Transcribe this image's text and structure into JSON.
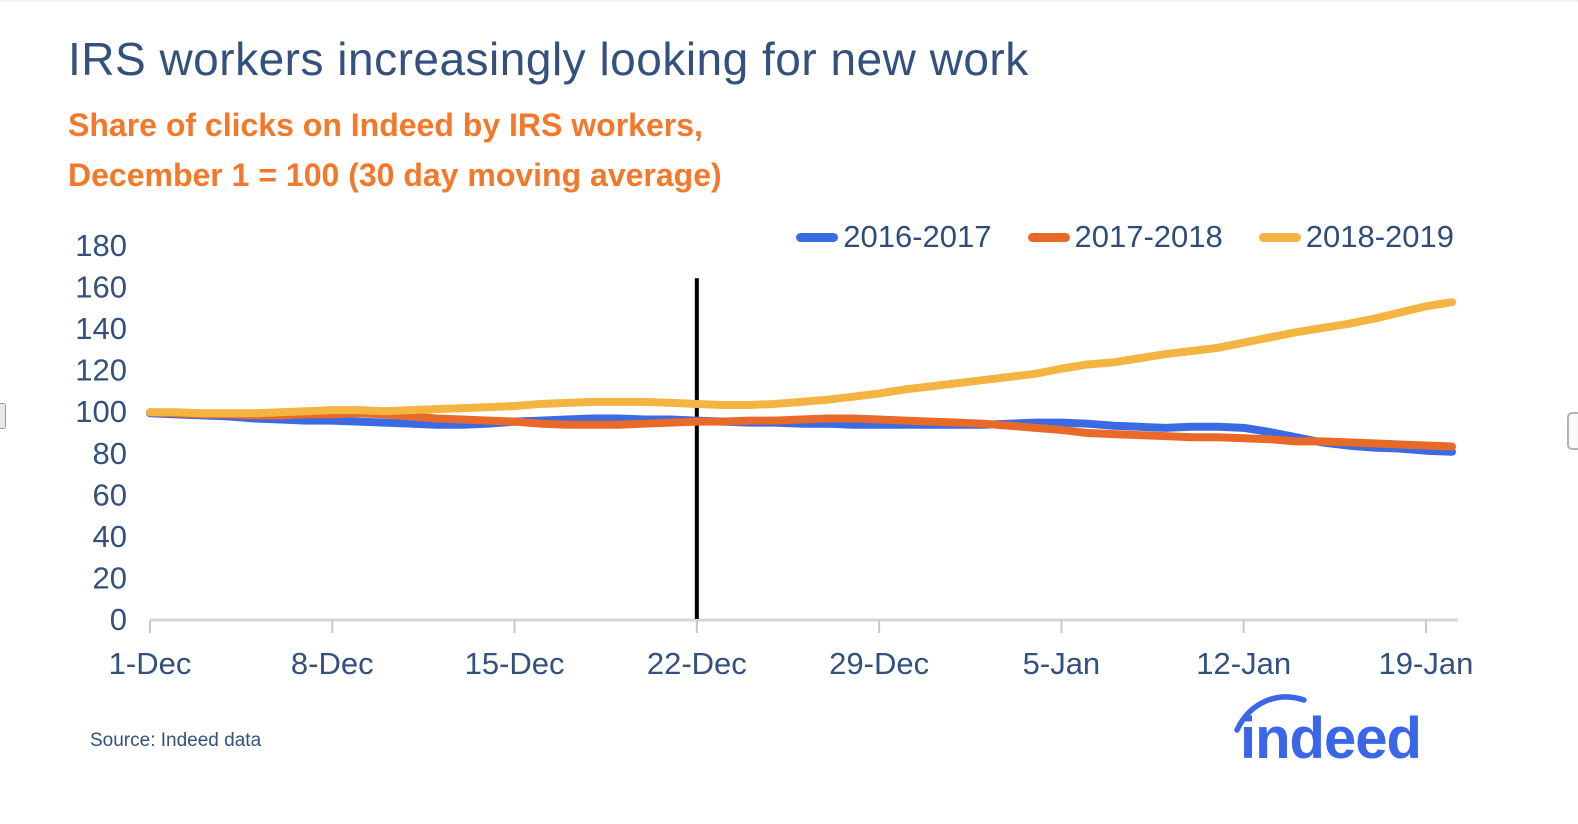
{
  "header": {
    "title": "IRS workers increasingly looking for new work",
    "subtitle_line1": "Share of clicks on Indeed by IRS workers,",
    "subtitle_line2": "December 1 = 100 (30 day moving average)",
    "title_color": "#33507e",
    "subtitle_color": "#f4782a"
  },
  "chart_data": {
    "type": "line",
    "title": "IRS workers increasingly looking for new work",
    "subtitle": "Share of clicks on Indeed by IRS workers, December 1 = 100 (30 day moving average)",
    "x_unit": "days since December 1",
    "x_range_days": [
      0,
      50
    ],
    "x_tick_days": [
      0,
      7,
      14,
      21,
      28,
      35,
      42,
      49
    ],
    "x_tick_labels": [
      "1-Dec",
      "8-Dec",
      "15-Dec",
      "22-Dec",
      "29-Dec",
      "5-Jan",
      "12-Jan",
      "19-Jan"
    ],
    "ylim": [
      0,
      180
    ],
    "y_ticks": [
      0,
      20,
      40,
      60,
      80,
      100,
      120,
      140,
      160,
      180
    ],
    "grid": false,
    "legend_position": "top-right",
    "series": [
      {
        "name": "2016-2017",
        "color": "#3b6be3",
        "values": [
          99,
          98.5,
          98,
          97.5,
          96.5,
          96,
          95.5,
          95.5,
          95,
          94.5,
          94,
          93.5,
          93.5,
          94,
          95,
          95.5,
          96,
          96.5,
          96.5,
          96,
          96,
          95.5,
          95,
          94.5,
          94.5,
          94,
          94,
          93.5,
          93.5,
          93.5,
          93.5,
          93.5,
          93.5,
          94,
          94.5,
          94.5,
          94,
          93,
          92.5,
          92,
          92.5,
          92.5,
          92,
          90,
          87.5,
          85,
          83.5,
          82.5,
          82,
          81,
          80.5
        ]
      },
      {
        "name": "2017-2018",
        "color": "#e96a28",
        "values": [
          99.5,
          99,
          98.5,
          98.5,
          98,
          98,
          98.5,
          98.5,
          99,
          98.5,
          97.5,
          96.5,
          96,
          95.5,
          95,
          94,
          93.5,
          93.5,
          93.5,
          94,
          94.5,
          95,
          95,
          95.5,
          95.5,
          96,
          96.5,
          96.5,
          96,
          95.5,
          95,
          94.5,
          94,
          93,
          92,
          91,
          89.5,
          89,
          88.5,
          88,
          87.5,
          87.5,
          87,
          86.5,
          85.5,
          85.5,
          85,
          84.5,
          84,
          83.5,
          83
        ]
      },
      {
        "name": "2018-2019",
        "color": "#f4b442",
        "values": [
          99.5,
          99.5,
          99,
          99,
          99,
          99.5,
          100,
          100.5,
          100.5,
          100,
          100.5,
          101,
          101.5,
          102,
          102.5,
          103.5,
          104,
          104.5,
          104.5,
          104.5,
          104,
          103.5,
          103,
          103,
          103.5,
          104.5,
          105.5,
          107,
          108.5,
          110.5,
          112,
          113.5,
          115,
          116.5,
          118,
          120.5,
          122.5,
          123.5,
          125.5,
          127.5,
          129,
          130.5,
          133,
          135.5,
          138,
          140,
          142,
          144.5,
          147.5,
          150.5,
          152.5
        ]
      }
    ],
    "annotations": [
      {
        "type": "vline",
        "x_day": 21,
        "y_from": 0,
        "y_to": 164,
        "color": "#000000",
        "width": 4
      }
    ],
    "style": {
      "axis_color": "#d6d6d6",
      "tick_color": "#c8c8c8",
      "label_color": "#33507e",
      "line_width": 8
    }
  },
  "footer": {
    "source": "Source: Indeed data",
    "logo_text": "indeed",
    "logo_color": "#3a66e8"
  }
}
